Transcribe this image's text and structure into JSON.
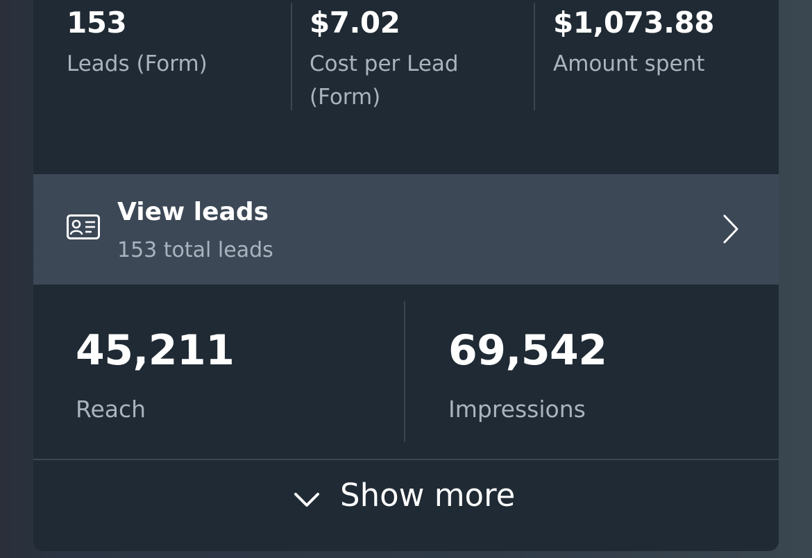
{
  "summary_metrics": [
    {
      "value": "153",
      "label_line1": "Leads (Form)",
      "label_line2": ""
    },
    {
      "value": "$7.02",
      "label_line1": "Cost per Lead",
      "label_line2": "(Form)"
    },
    {
      "value": "$1,073.88",
      "label_line1": "Amount spent",
      "label_line2": ""
    }
  ],
  "view_leads": {
    "title": "View leads",
    "subtitle": "153 total leads",
    "icon": "id-card-icon",
    "chevron": "chevron-right-icon"
  },
  "detail_metrics": [
    {
      "value": "45,211",
      "label": "Reach"
    },
    {
      "value": "69,542",
      "label": "Impressions"
    }
  ],
  "show_more": {
    "label": "Show more",
    "icon": "chevron-down-icon"
  },
  "colors": {
    "card_bg": "#1f2a34",
    "highlight_row_bg": "#3c4856",
    "text_primary": "#ffffff",
    "text_secondary": "#aab4bf",
    "divider": "#3b4652"
  }
}
